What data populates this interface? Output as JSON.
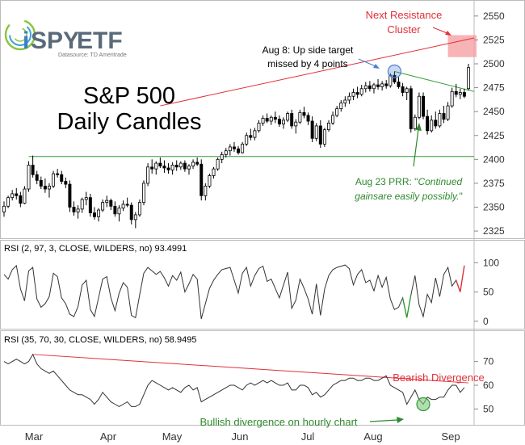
{
  "logo": {
    "text_i": "i",
    "text_spy": "SPY",
    "text_etf": "ETF",
    "source": "Datasource: TD Ameritrade"
  },
  "colors": {
    "candle": "#000000",
    "red_line": "#e0303a",
    "green_line": "#2e9a2e",
    "blue": "#4a7fd0",
    "zone": "#f59a9e",
    "rsi_low": "#2e9a2e",
    "rsi_high": "#e0303a"
  },
  "chart_data": [
    {
      "type": "candlestick",
      "title_line1": "S&P 500",
      "title_line2": "Daily Candles",
      "ylim": [
        2320,
        2560
      ],
      "yticks": [
        2325,
        2350,
        2375,
        2400,
        2425,
        2450,
        2475,
        2500,
        2525,
        2550
      ],
      "xlabels": [
        "Mar",
        "Apr",
        "May",
        "Jun",
        "Jul",
        "Aug",
        "Sep"
      ],
      "ohlc": [
        [
          2345,
          2356,
          2340,
          2351
        ],
        [
          2351,
          2362,
          2349,
          2360
        ],
        [
          2360,
          2368,
          2357,
          2364
        ],
        [
          2364,
          2370,
          2358,
          2362
        ],
        [
          2362,
          2366,
          2350,
          2354
        ],
        [
          2354,
          2372,
          2353,
          2369
        ],
        [
          2369,
          2398,
          2366,
          2394
        ],
        [
          2394,
          2404,
          2381,
          2384
        ],
        [
          2384,
          2388,
          2374,
          2378
        ],
        [
          2378,
          2382,
          2369,
          2372
        ],
        [
          2372,
          2380,
          2365,
          2369
        ],
        [
          2369,
          2375,
          2360,
          2372
        ],
        [
          2372,
          2388,
          2370,
          2385
        ],
        [
          2385,
          2390,
          2381,
          2384
        ],
        [
          2384,
          2388,
          2374,
          2377
        ],
        [
          2377,
          2381,
          2370,
          2374
        ],
        [
          2374,
          2378,
          2345,
          2350
        ],
        [
          2350,
          2356,
          2341,
          2345
        ],
        [
          2345,
          2352,
          2338,
          2348
        ],
        [
          2348,
          2360,
          2344,
          2358
        ],
        [
          2358,
          2366,
          2352,
          2360
        ],
        [
          2360,
          2364,
          2340,
          2344
        ],
        [
          2344,
          2350,
          2337,
          2340
        ],
        [
          2340,
          2349,
          2335,
          2347
        ],
        [
          2347,
          2358,
          2345,
          2355
        ],
        [
          2355,
          2362,
          2350,
          2357
        ],
        [
          2357,
          2359,
          2347,
          2351
        ],
        [
          2351,
          2356,
          2340,
          2343
        ],
        [
          2343,
          2352,
          2335,
          2349
        ],
        [
          2349,
          2357,
          2346,
          2353
        ],
        [
          2353,
          2360,
          2350,
          2352
        ],
        [
          2352,
          2355,
          2332,
          2337
        ],
        [
          2337,
          2345,
          2328,
          2342
        ],
        [
          2342,
          2358,
          2340,
          2355
        ],
        [
          2355,
          2378,
          2352,
          2375
        ],
        [
          2375,
          2396,
          2372,
          2392
        ],
        [
          2392,
          2400,
          2385,
          2390
        ],
        [
          2390,
          2398,
          2384,
          2396
        ],
        [
          2396,
          2402,
          2391,
          2393
        ],
        [
          2393,
          2399,
          2386,
          2391
        ],
        [
          2391,
          2396,
          2385,
          2389
        ],
        [
          2389,
          2397,
          2384,
          2394
        ],
        [
          2394,
          2399,
          2388,
          2392
        ],
        [
          2392,
          2398,
          2389,
          2396
        ],
        [
          2396,
          2399,
          2387,
          2390
        ],
        [
          2390,
          2395,
          2384,
          2393
        ],
        [
          2393,
          2400,
          2390,
          2397
        ],
        [
          2397,
          2402,
          2393,
          2395
        ],
        [
          2395,
          2400,
          2357,
          2362
        ],
        [
          2362,
          2375,
          2357,
          2372
        ],
        [
          2372,
          2385,
          2370,
          2383
        ],
        [
          2383,
          2392,
          2380,
          2390
        ],
        [
          2390,
          2402,
          2388,
          2400
        ],
        [
          2400,
          2408,
          2396,
          2405
        ],
        [
          2405,
          2412,
          2402,
          2409
        ],
        [
          2409,
          2416,
          2404,
          2413
        ],
        [
          2413,
          2418,
          2408,
          2411
        ],
        [
          2411,
          2414,
          2405,
          2407
        ],
        [
          2407,
          2418,
          2406,
          2416
        ],
        [
          2416,
          2428,
          2414,
          2425
        ],
        [
          2425,
          2432,
          2420,
          2423
        ],
        [
          2423,
          2433,
          2420,
          2430
        ],
        [
          2430,
          2441,
          2428,
          2438
        ],
        [
          2438,
          2446,
          2435,
          2443
        ],
        [
          2443,
          2448,
          2438,
          2440
        ],
        [
          2440,
          2446,
          2436,
          2444
        ],
        [
          2444,
          2450,
          2438,
          2442
        ],
        [
          2442,
          2446,
          2434,
          2437
        ],
        [
          2437,
          2444,
          2432,
          2441
        ],
        [
          2441,
          2450,
          2439,
          2448
        ],
        [
          2448,
          2452,
          2432,
          2435
        ],
        [
          2435,
          2442,
          2427,
          2439
        ],
        [
          2439,
          2452,
          2437,
          2449
        ],
        [
          2449,
          2455,
          2443,
          2446
        ],
        [
          2446,
          2449,
          2436,
          2440
        ],
        [
          2440,
          2445,
          2418,
          2422
        ],
        [
          2422,
          2438,
          2419,
          2435
        ],
        [
          2435,
          2441,
          2412,
          2416
        ],
        [
          2416,
          2433,
          2413,
          2431
        ],
        [
          2431,
          2441,
          2429,
          2438
        ],
        [
          2438,
          2450,
          2436,
          2446
        ],
        [
          2446,
          2456,
          2444,
          2453
        ],
        [
          2453,
          2462,
          2450,
          2459
        ],
        [
          2459,
          2466,
          2455,
          2462
        ],
        [
          2462,
          2470,
          2458,
          2466
        ],
        [
          2466,
          2474,
          2462,
          2470
        ],
        [
          2470,
          2476,
          2464,
          2468
        ],
        [
          2468,
          2478,
          2466,
          2474
        ],
        [
          2474,
          2481,
          2470,
          2477
        ],
        [
          2477,
          2482,
          2471,
          2474
        ],
        [
          2474,
          2480,
          2469,
          2478
        ],
        [
          2478,
          2484,
          2473,
          2476
        ],
        [
          2476,
          2482,
          2472,
          2479
        ],
        [
          2479,
          2483,
          2474,
          2477
        ],
        [
          2477,
          2490,
          2475,
          2488
        ],
        [
          2488,
          2492,
          2479,
          2481
        ],
        [
          2481,
          2486,
          2474,
          2476
        ],
        [
          2476,
          2480,
          2466,
          2470
        ],
        [
          2470,
          2476,
          2462,
          2474
        ],
        [
          2474,
          2477,
          2428,
          2432
        ],
        [
          2432,
          2447,
          2430,
          2444
        ],
        [
          2444,
          2470,
          2442,
          2466
        ],
        [
          2466,
          2470,
          2442,
          2445
        ],
        [
          2445,
          2452,
          2426,
          2430
        ],
        [
          2430,
          2446,
          2428,
          2441
        ],
        [
          2441,
          2450,
          2432,
          2435
        ],
        [
          2435,
          2452,
          2433,
          2448
        ],
        [
          2448,
          2456,
          2438,
          2442
        ],
        [
          2442,
          2460,
          2440,
          2456
        ],
        [
          2456,
          2475,
          2454,
          2471
        ],
        [
          2471,
          2479,
          2465,
          2468
        ],
        [
          2468,
          2474,
          2463,
          2470
        ],
        [
          2470,
          2474,
          2464,
          2466
        ],
        [
          2474,
          2500,
          2472,
          2496
        ]
      ],
      "resistance_line": [
        [
          38,
          2456
        ],
        [
          113,
          2527
        ]
      ],
      "neckline": [
        [
          95,
          2492
        ],
        [
          113,
          2471
        ]
      ],
      "support_level": 2403,
      "resistance_zone": [
        2507,
        2530
      ]
    },
    {
      "type": "line",
      "title": "RSI (2, 97, 3, CLOSE, WILDERS, no) 93.4991",
      "ylim": [
        -10,
        110
      ],
      "yticks": [
        0,
        50,
        100
      ],
      "values": [
        80,
        72,
        88,
        95,
        55,
        35,
        86,
        92,
        38,
        24,
        30,
        42,
        82,
        76,
        40,
        30,
        12,
        8,
        25,
        62,
        70,
        20,
        8,
        40,
        72,
        76,
        40,
        18,
        48,
        66,
        58,
        10,
        6,
        45,
        82,
        92,
        86,
        80,
        85,
        74,
        60,
        78,
        70,
        84,
        50,
        64,
        80,
        72,
        4,
        30,
        56,
        70,
        80,
        88,
        90,
        92,
        70,
        48,
        82,
        92,
        60,
        78,
        90,
        94,
        68,
        72,
        56,
        40,
        62,
        84,
        22,
        36,
        72,
        56,
        38,
        12,
        64,
        10,
        55,
        78,
        88,
        92,
        94,
        96,
        90,
        62,
        80,
        88,
        66,
        70,
        52,
        78,
        58,
        75,
        38,
        20,
        24,
        40,
        6,
        45,
        78,
        28,
        8,
        46,
        32,
        74,
        42,
        80,
        92,
        60,
        70,
        50,
        95
      ],
      "annotation_values": {
        "low_marker_index": 98,
        "high_marker_index": 111
      }
    },
    {
      "type": "line",
      "title": "RSI (35, 70, 30, CLOSE, WILDERS, no) 58.9495",
      "ylim": [
        44,
        76
      ],
      "yticks": [
        50,
        60,
        70
      ],
      "values": [
        70,
        69,
        70,
        71,
        70,
        69,
        70,
        73,
        69,
        67,
        66,
        65,
        66,
        64,
        62,
        60,
        58,
        57,
        56,
        56,
        55,
        54,
        52,
        54,
        57,
        55,
        53,
        52,
        51,
        52,
        53,
        51,
        51,
        52,
        56,
        60,
        62,
        61,
        60,
        59,
        58,
        59,
        58,
        57,
        59,
        60,
        58,
        59,
        53,
        54,
        55,
        56,
        57,
        58,
        59,
        60,
        60,
        59,
        58,
        60,
        61,
        60,
        61,
        62,
        61,
        62,
        61,
        60,
        60,
        61,
        58,
        58,
        60,
        60,
        59,
        56,
        57,
        55,
        56,
        58,
        60,
        61,
        62,
        62,
        63,
        63,
        62,
        62,
        63,
        63,
        62,
        62,
        63,
        64,
        60,
        59,
        58,
        57,
        52,
        55,
        58,
        54,
        52,
        55,
        54,
        54,
        55,
        55,
        58,
        60,
        60,
        57,
        59
      ],
      "trend_line": [
        [
          7,
          73
        ],
        [
          113,
          61
        ]
      ],
      "bearish_label": "Bearish Divergence",
      "bullish_label": "Bullish divergence on hourly chart",
      "divergence_point_index": 102
    }
  ],
  "annotations": {
    "next_resistance": "Next Resistance\nCluster",
    "aug8": "Aug 8: Up side target\nmissed by 4 points",
    "aug23_prefix": "Aug 23 PRR: \"",
    "aug23_italic": "Continued gainsare easily possibly.",
    "aug23_suffix": "\""
  }
}
